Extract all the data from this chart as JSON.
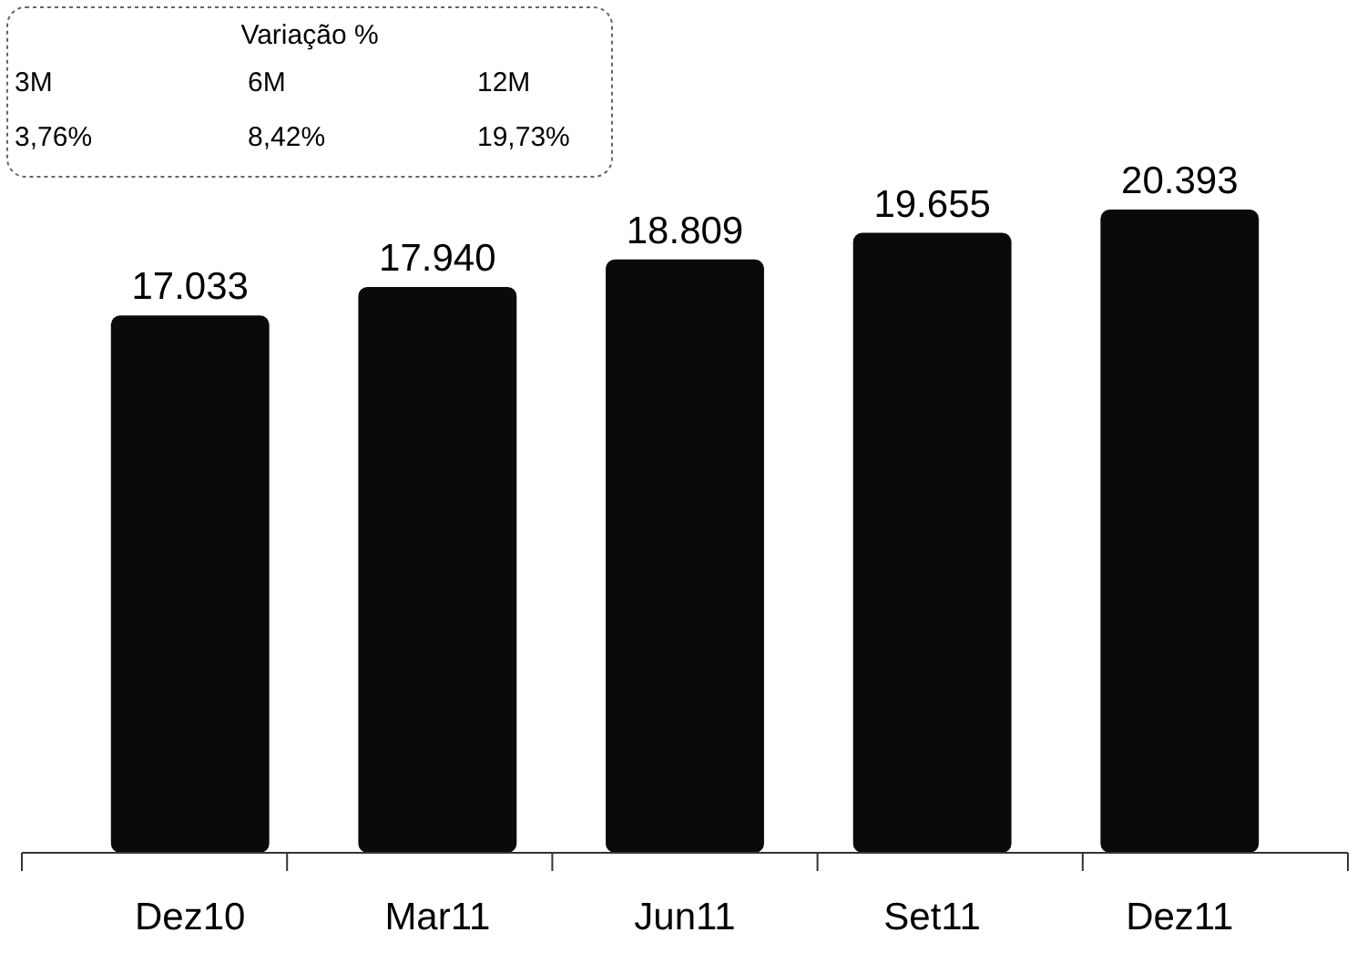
{
  "chart_data": {
    "type": "bar",
    "categories": [
      "Dez10",
      "Mar11",
      "Jun11",
      "Set11",
      "Dez11"
    ],
    "values": [
      17033,
      17940,
      18809,
      19655,
      20393
    ],
    "value_labels": [
      "17.033",
      "17.940",
      "18.809",
      "19.655",
      "20.393"
    ],
    "color": "#0a0a0a",
    "tick_labels": "x",
    "annotations": [
      "Variação %",
      "3M",
      "6M",
      "12M",
      "3,76%",
      "8,42%",
      "19,73%"
    ]
  }
}
